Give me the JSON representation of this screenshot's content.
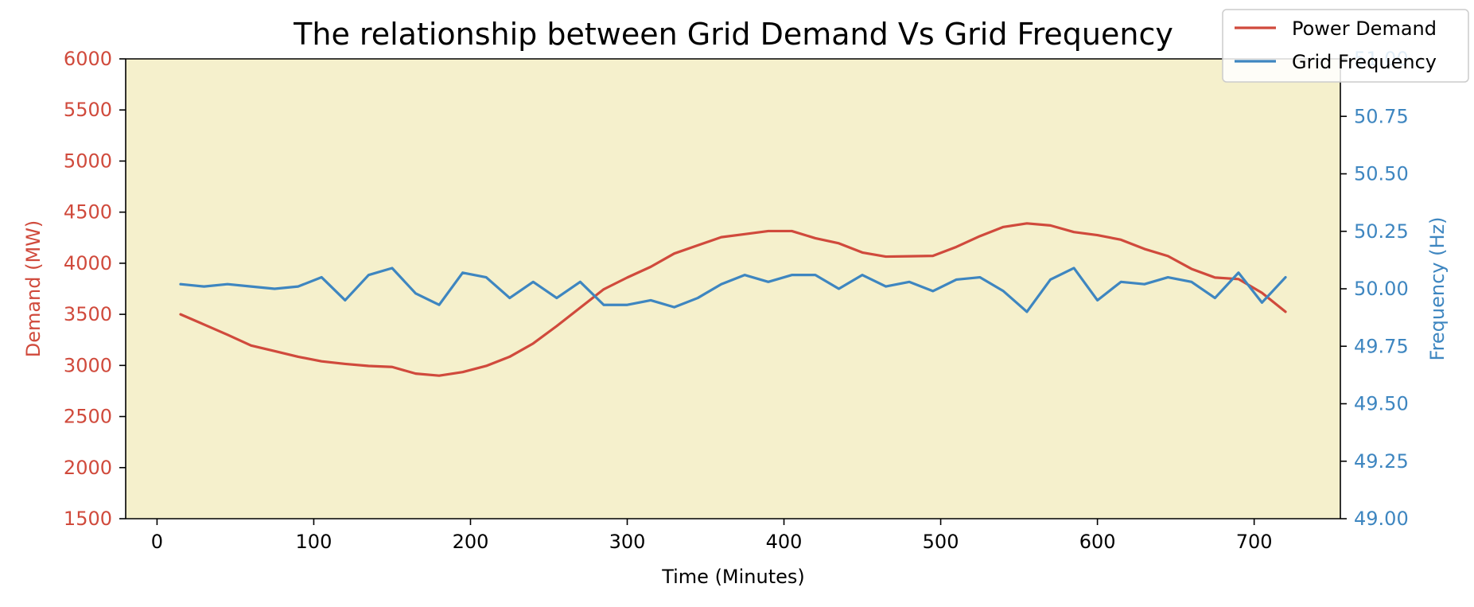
{
  "chart_data": {
    "type": "line",
    "title": "The relationship between Grid Demand Vs Grid Frequency",
    "xlabel": "Time (Minutes)",
    "ylabel_left": "Demand (MW)",
    "ylabel_right": "Frequency (Hz)",
    "xlim": [
      -20,
      755
    ],
    "ylim_left": [
      1500,
      6000
    ],
    "ylim_right": [
      49.0,
      51.0
    ],
    "x_ticks": [
      0,
      100,
      200,
      300,
      400,
      500,
      600,
      700
    ],
    "y_ticks_left": [
      1500,
      2000,
      2500,
      3000,
      3500,
      4000,
      4500,
      5000,
      5500,
      6000
    ],
    "y_ticks_right": [
      49.0,
      49.25,
      49.5,
      49.75,
      50.0,
      50.25,
      50.5,
      50.75,
      51.0
    ],
    "y_tick_labels_right": [
      "49.00",
      "49.25",
      "49.50",
      "49.75",
      "50.00",
      "50.25",
      "50.50",
      "50.75",
      "51.00"
    ],
    "grid": false,
    "plot_background": "#f5f0cc",
    "legend_position": "top-right",
    "x": [
      15,
      30,
      45,
      60,
      75,
      90,
      105,
      120,
      135,
      150,
      165,
      180,
      195,
      210,
      225,
      240,
      255,
      270,
      285,
      300,
      315,
      330,
      345,
      360,
      375,
      390,
      405,
      420,
      435,
      450,
      465,
      480,
      495,
      510,
      525,
      540,
      555,
      570,
      585,
      600,
      615,
      630,
      645,
      660,
      675,
      690,
      705,
      720
    ],
    "series": [
      {
        "name": "Power Demand",
        "axis": "left",
        "color": "#d04a3c",
        "values": [
          3500,
          3400,
          3300,
          3195,
          3140,
          3085,
          3040,
          3015,
          2995,
          2985,
          2920,
          2900,
          2935,
          2995,
          3085,
          3215,
          3385,
          3565,
          3745,
          3860,
          3965,
          4095,
          4175,
          4255,
          4285,
          4315,
          4315,
          4245,
          4195,
          4105,
          4065,
          4068,
          4072,
          4160,
          4265,
          4355,
          4390,
          4370,
          4305,
          4275,
          4230,
          4140,
          4070,
          3945,
          3860,
          3845,
          3710,
          3525
        ]
      },
      {
        "name": "Grid Frequency",
        "axis": "right",
        "color": "#3e86c0",
        "values": [
          50.02,
          50.01,
          50.02,
          50.01,
          50.0,
          50.01,
          50.05,
          49.95,
          50.06,
          50.09,
          49.98,
          49.93,
          50.07,
          50.05,
          49.96,
          50.03,
          49.96,
          50.03,
          49.93,
          49.93,
          49.95,
          49.92,
          49.96,
          50.02,
          50.06,
          50.03,
          50.06,
          50.06,
          50.0,
          50.06,
          50.01,
          50.03,
          49.99,
          50.04,
          50.05,
          49.99,
          49.9,
          50.04,
          50.09,
          49.95,
          50.03,
          50.02,
          50.05,
          50.03,
          49.96,
          50.07,
          49.94,
          50.05
        ]
      }
    ]
  }
}
